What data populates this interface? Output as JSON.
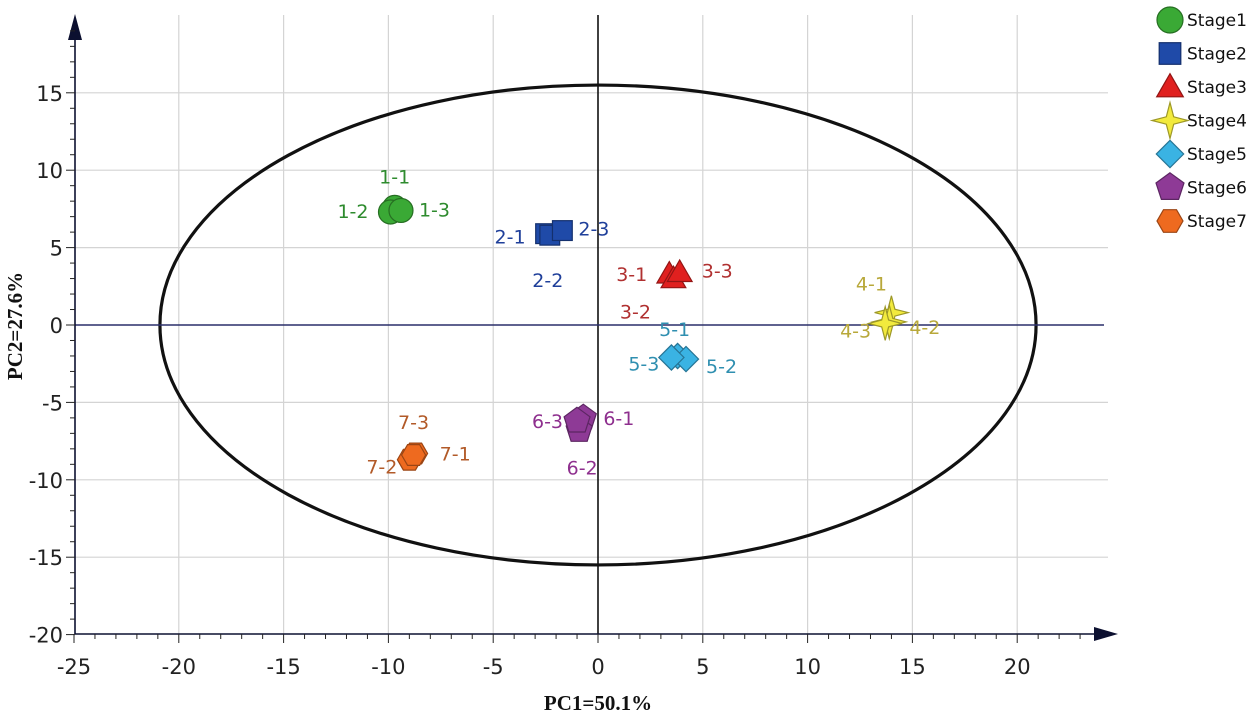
{
  "chart_data": {
    "type": "scatter",
    "title": "",
    "xlabel": "PC1=50.1%",
    "ylabel": "PC2=27.6%",
    "xlim": [
      -25,
      25
    ],
    "ylim": [
      -20,
      20
    ],
    "xticks": [
      -25,
      -20,
      -15,
      -10,
      -5,
      0,
      5,
      10,
      15,
      20
    ],
    "yticks": [
      -20,
      -15,
      -10,
      -5,
      0,
      5,
      10,
      15
    ],
    "x_tick_labels": [
      "-25",
      "-20",
      "-15",
      "-10",
      "-5",
      "0",
      "5",
      "10",
      "15",
      "20"
    ],
    "y_tick_labels": [
      "-20",
      "-15",
      "-10",
      "-5",
      "0",
      "5",
      "10",
      "15"
    ],
    "grid": true,
    "legend_position": "outside-right",
    "confidence_ellipse": {
      "center": [
        0,
        0
      ],
      "semi_x": 20.9,
      "semi_y": 15.5
    },
    "series": [
      {
        "name": "Stage1",
        "marker": "circle",
        "color": "#3aa935",
        "label_color": "#2e8b2e",
        "points": [
          {
            "x": -9.7,
            "y": 7.6,
            "label": "1-1"
          },
          {
            "x": -9.9,
            "y": 7.3,
            "label": "1-2"
          },
          {
            "x": -9.4,
            "y": 7.4,
            "label": "1-3"
          }
        ]
      },
      {
        "name": "Stage2",
        "marker": "square",
        "color": "#1f4aa8",
        "label_color": "#1f3f9a",
        "points": [
          {
            "x": -2.5,
            "y": 5.9,
            "label": "2-1"
          },
          {
            "x": -2.3,
            "y": 5.8,
            "label": "2-2"
          },
          {
            "x": -1.7,
            "y": 6.1,
            "label": "2-3"
          }
        ]
      },
      {
        "name": "Stage3",
        "marker": "triangle",
        "color": "#e0201f",
        "label_color": "#b03030",
        "points": [
          {
            "x": 3.4,
            "y": 3.3,
            "label": "3-1"
          },
          {
            "x": 3.6,
            "y": 3.0,
            "label": "3-2"
          },
          {
            "x": 3.9,
            "y": 3.4,
            "label": "3-3"
          }
        ]
      },
      {
        "name": "Stage4",
        "marker": "star",
        "color": "#f2ea3d",
        "label_color": "#b8a83a",
        "points": [
          {
            "x": 14.0,
            "y": 0.8,
            "label": "4-1"
          },
          {
            "x": 13.9,
            "y": 0.2,
            "label": "4-2"
          },
          {
            "x": 13.7,
            "y": 0.1,
            "label": "4-3"
          }
        ]
      },
      {
        "name": "Stage5",
        "marker": "diamond",
        "color": "#3ab3e3",
        "label_color": "#2f8fb0",
        "points": [
          {
            "x": 3.8,
            "y": -2.0,
            "label": "5-1"
          },
          {
            "x": 4.2,
            "y": -2.2,
            "label": "5-2"
          },
          {
            "x": 3.5,
            "y": -2.1,
            "label": "5-3"
          }
        ]
      },
      {
        "name": "Stage6",
        "marker": "pentagon",
        "color": "#8e3a96",
        "label_color": "#8e2f8e",
        "points": [
          {
            "x": -0.7,
            "y": -6.0,
            "label": "6-1"
          },
          {
            "x": -0.9,
            "y": -6.8,
            "label": "6-2"
          },
          {
            "x": -1.0,
            "y": -6.2,
            "label": "6-3"
          }
        ]
      },
      {
        "name": "Stage7",
        "marker": "hexagon",
        "color": "#ee6a1f",
        "label_color": "#b25a28",
        "points": [
          {
            "x": -8.7,
            "y": -8.3,
            "label": "7-1"
          },
          {
            "x": -9.0,
            "y": -8.7,
            "label": "7-2"
          },
          {
            "x": -8.8,
            "y": -8.4,
            "label": "7-3"
          }
        ]
      }
    ]
  }
}
